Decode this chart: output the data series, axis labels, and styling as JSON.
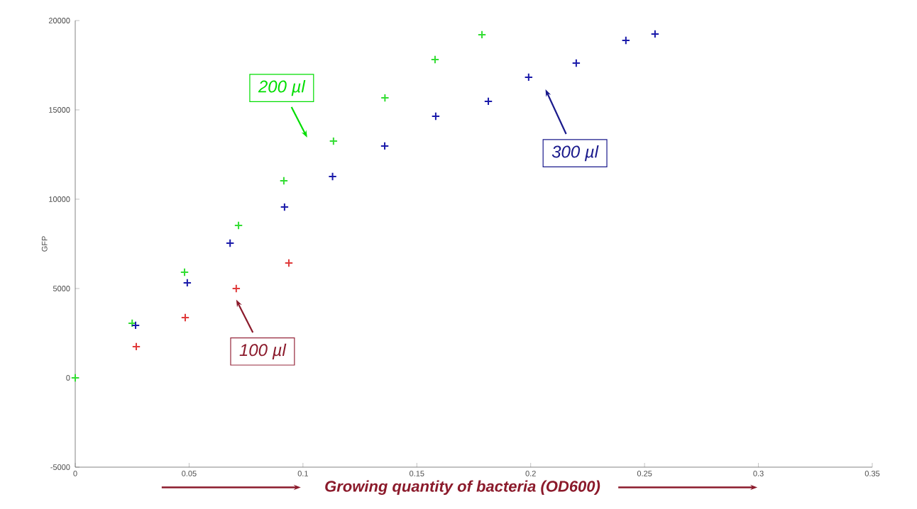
{
  "chart_data": {
    "type": "scatter",
    "xlabel": "Growing quantity of bacteria (OD600)",
    "ylabel": "GFP",
    "xlim": [
      0,
      0.35
    ],
    "xticks": [
      0,
      0.05,
      0.1,
      0.15,
      0.2,
      0.25,
      0.3,
      0.35
    ],
    "ylim": [
      -5000,
      20000
    ],
    "yticks": [
      -5000,
      0,
      5000,
      10000,
      15000,
      20000
    ],
    "grid": false,
    "legend": false,
    "marker": "cross",
    "series": [
      {
        "color": "#e03a3a",
        "x": [
          0.0268,
          0.0483,
          0.0707,
          0.0938
        ],
        "values": [
          1750,
          3370,
          5000,
          6430
        ]
      },
      {
        "color": "#33dd33",
        "x": [
          0,
          0.025,
          0.048,
          0.0717,
          0.0916,
          0.1134,
          0.136,
          0.158,
          0.1786
        ],
        "values": [
          0,
          3060,
          5910,
          8530,
          11030,
          13250,
          15670,
          17820,
          19210
        ]
      },
      {
        "color": "#1a1aaa",
        "x": [
          0.0265,
          0.0492,
          0.068,
          0.0919,
          0.113,
          0.1359,
          0.1583,
          0.1814,
          0.1991,
          0.22,
          0.2418,
          0.2546
        ],
        "values": [
          2940,
          5320,
          7540,
          9560,
          11270,
          12980,
          14640,
          15480,
          16830,
          17620,
          18890,
          19250
        ]
      }
    ],
    "annotations": [
      "100 µl",
      "200 µl",
      "300 µl"
    ]
  }
}
